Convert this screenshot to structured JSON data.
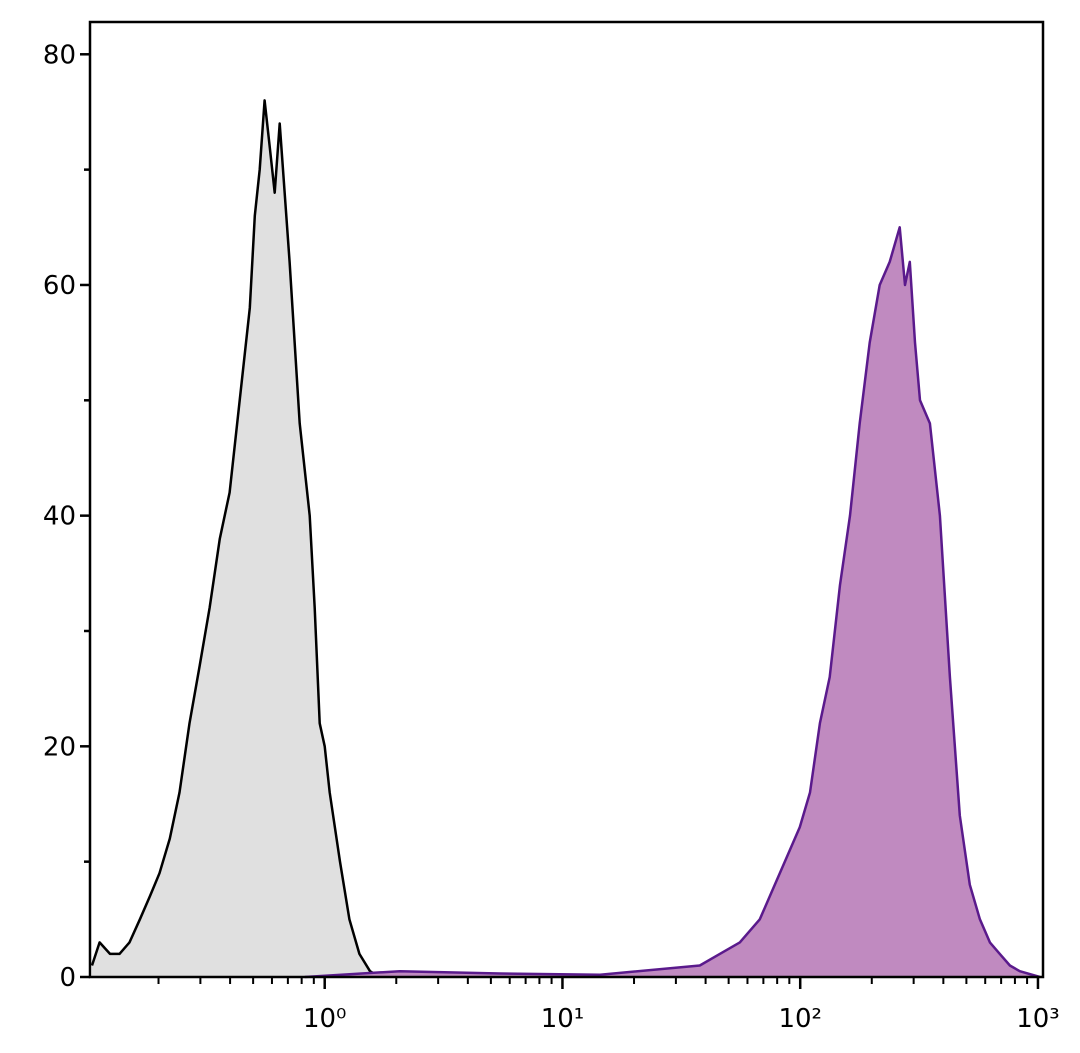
{
  "chart_data": {
    "type": "area",
    "xscale": "log",
    "xlim": [
      0.103,
      1050
    ],
    "ylim": [
      0,
      82.8
    ],
    "xticks": [
      {
        "value": 1,
        "label": "10⁰"
      },
      {
        "value": 10,
        "label": "10¹"
      },
      {
        "value": 100,
        "label": "10²"
      },
      {
        "value": 1000,
        "label": "10³"
      }
    ],
    "yticks": [
      0,
      20,
      40,
      60,
      80
    ],
    "yminorticks": [
      10,
      30,
      50,
      70
    ],
    "series": [
      {
        "color": "#000000",
        "fill": "#e0e0e0",
        "x": [
          0.105,
          0.113,
          0.125,
          0.137,
          0.151,
          0.167,
          0.184,
          0.202,
          0.223,
          0.245,
          0.27,
          0.298,
          0.328,
          0.362,
          0.398,
          0.439,
          0.484,
          0.508,
          0.533,
          0.559,
          0.587,
          0.616,
          0.647,
          0.712,
          0.785,
          0.865,
          0.908,
          0.953,
          1.0,
          1.05,
          1.16,
          1.27,
          1.4,
          1.55,
          1.7
        ],
        "values": [
          1,
          3,
          2,
          2,
          3,
          5,
          7,
          9,
          12,
          16,
          22,
          27,
          32,
          38,
          42,
          50,
          58,
          66,
          70,
          76,
          72,
          68,
          74,
          62,
          48,
          40,
          32,
          22,
          20,
          16,
          10,
          5,
          2,
          0.5,
          0
        ]
      },
      {
        "color": "#5a1a8c",
        "fill": "#c08ac0",
        "x": [
          0.824,
          2.07,
          5.45,
          14.4,
          37.8,
          45.9,
          55.7,
          67.6,
          82.1,
          99.6,
          110,
          121,
          133,
          147,
          162,
          178,
          196,
          216,
          238,
          262,
          276,
          289,
          304,
          319,
          351,
          387,
          426,
          469,
          517,
          570,
          628,
          691,
          762,
          839,
          1019
        ],
        "values": [
          0,
          0.5,
          0.3,
          0.2,
          1,
          2,
          3,
          5,
          9,
          13,
          16,
          22,
          26,
          34,
          40,
          48,
          55,
          60,
          62,
          65,
          60,
          62,
          55,
          50,
          48,
          40,
          26,
          14,
          8,
          5,
          3,
          2,
          1,
          0.5,
          0
        ]
      }
    ]
  }
}
